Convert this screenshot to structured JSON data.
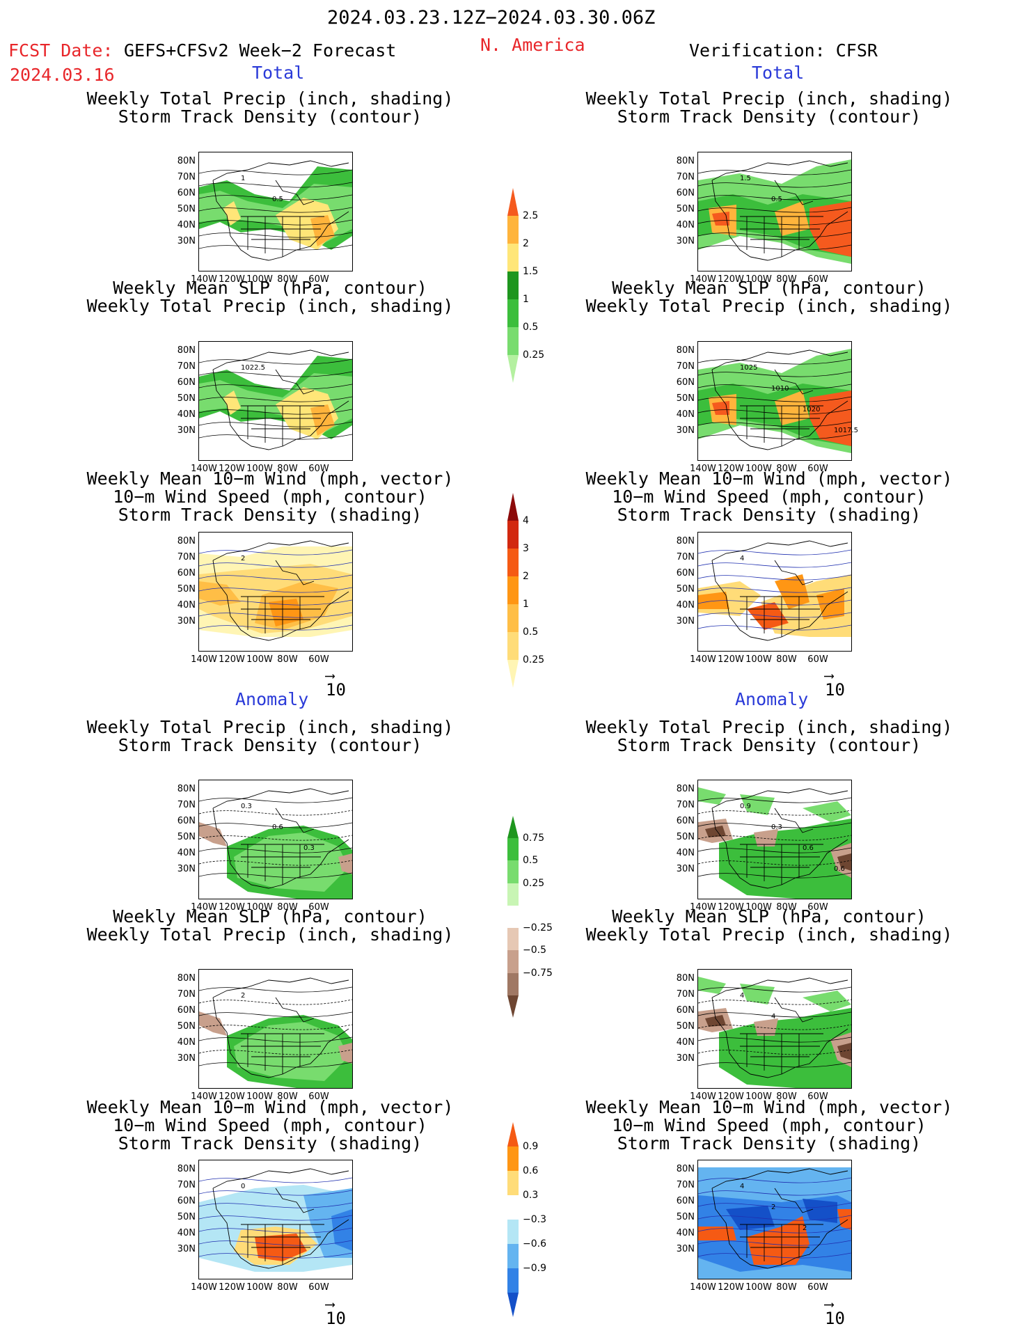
{
  "header": {
    "period": "2024.03.23.12Z−2024.03.30.06Z",
    "fcst_label": "FCST Date:",
    "fcst_model": "GEFS+CFSv2 Week−2 Forecast",
    "fcst_date": "2024.03.16",
    "region": "N. America",
    "verification": "Verification: CFSR"
  },
  "sections": {
    "total": "Total",
    "anomaly": "Anomaly"
  },
  "titles": {
    "precip_track": [
      "Weekly Total Precip (inch, shading)",
      "Storm Track Density (contour)"
    ],
    "slp_precip": [
      "Weekly Mean SLP (hPa, contour)",
      "Weekly Total Precip (inch, shading)"
    ],
    "wind_track": [
      "Weekly Mean 10−m Wind (mph, vector)",
      "10−m Wind Speed (mph, contour)",
      "Storm Track Density (shading)"
    ]
  },
  "axes": {
    "lat": [
      "80N",
      "70N",
      "60N",
      "50N",
      "40N",
      "30N"
    ],
    "lon": [
      "140W",
      "120W",
      "100W",
      "80W",
      "60W"
    ]
  },
  "vector_ref": "10",
  "colorbars": {
    "precip_total": {
      "levels": [
        "0.25",
        "0.5",
        "1",
        "1.5",
        "2",
        "2.5"
      ],
      "colors": [
        "#b4f0a0",
        "#78dc6e",
        "#3cbe3c",
        "#1e961e",
        "#ffe678",
        "#ffb43c",
        "#f55a1e"
      ]
    },
    "track_total": {
      "levels": [
        "0.25",
        "0.5",
        "1",
        "2",
        "3",
        "4"
      ],
      "colors": [
        "#fff5b4",
        "#ffdc78",
        "#ffbe46",
        "#ff9614",
        "#f55a14",
        "#d2280f",
        "#8c0a0a"
      ]
    },
    "precip_anom": {
      "levels": [
        "0.75",
        "0.5",
        "0.25",
        "−0.25",
        "−0.5",
        "−0.75"
      ],
      "colors": [
        "#1e961e",
        "#3cbe3c",
        "#78dc6e",
        "#c8f5b4",
        "#ffffff",
        "#e6c8b4",
        "#c8a08c",
        "#a07864",
        "#6e4632"
      ]
    },
    "track_anom": {
      "levels": [
        "0.9",
        "0.6",
        "0.3",
        "−0.3",
        "−0.6",
        "−0.9"
      ],
      "colors": [
        "#f55a14",
        "#ff9614",
        "#ffdc78",
        "#ffffff",
        "#b4e6f5",
        "#64b4f0",
        "#3282e6",
        "#1450c8"
      ]
    }
  },
  "contour_labels": {
    "fc_precip_total": [
      "1",
      "0.5"
    ],
    "vf_precip_total": [
      "1.5",
      "0.5"
    ],
    "fc_slp_total": [
      "1022.5"
    ],
    "vf_slp_total": [
      "1025",
      "1010",
      "1020",
      "1017.5"
    ],
    "fc_wind_total": [
      "2"
    ],
    "vf_wind_total": [
      "4"
    ],
    "fc_precip_anom": [
      "0.3",
      "0.6",
      "0.3"
    ],
    "vf_precip_anom": [
      "0.9",
      "0.3",
      "0.6",
      "0.6"
    ],
    "fc_slp_anom": [
      "2"
    ],
    "vf_slp_anom": [
      "4",
      "4"
    ],
    "fc_wind_anom": [
      "0"
    ],
    "vf_wind_anom": [
      "4",
      "2",
      "2"
    ]
  }
}
